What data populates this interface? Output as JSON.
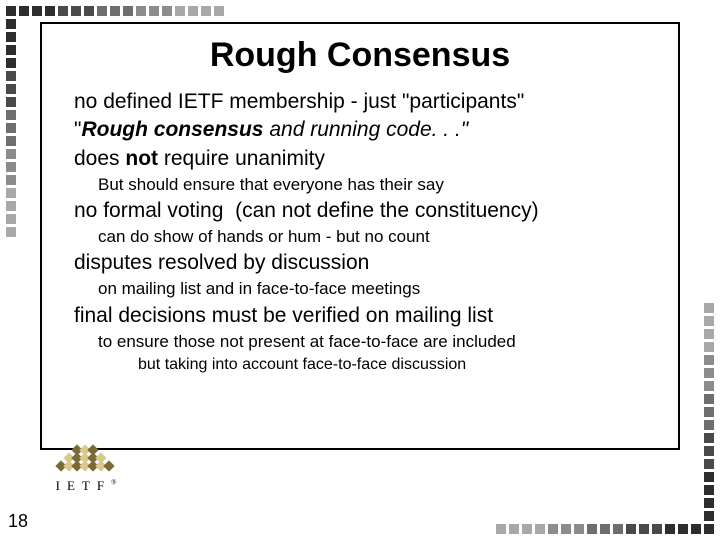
{
  "page_number": "18",
  "title": "Rough Consensus",
  "decor": {
    "colors": [
      "#2d2d2d",
      "#4a4a4a",
      "#6e6e6e",
      "#8c8c8c",
      "#a8a8a8"
    ],
    "square_size": 10,
    "gap": 3,
    "count_per_side": 17
  },
  "logo": {
    "text": "IETF",
    "diamond_colors": {
      "dark": "#7a6a3a",
      "light": "#d9c98a"
    }
  },
  "lines": [
    {
      "level": 1,
      "segments": [
        {
          "t": "no defined IETF membership - just \"participants\""
        }
      ]
    },
    {
      "level": 1,
      "segments": [
        {
          "t": "\""
        },
        {
          "t": "Rough consensus",
          "b": true,
          "i": true
        },
        {
          "t": " and running code. . .\"",
          "i": true
        }
      ]
    },
    {
      "level": 1,
      "segments": [
        {
          "t": "does "
        },
        {
          "t": "not",
          "b": true
        },
        {
          "t": " require unanimity"
        }
      ]
    },
    {
      "level": 2,
      "segments": [
        {
          "t": "But should ensure that everyone has their say"
        }
      ]
    },
    {
      "level": 1,
      "segments": [
        {
          "t": "no formal voting  (can not define the constituency)"
        }
      ]
    },
    {
      "level": 2,
      "segments": [
        {
          "t": "can do show of hands or hum - but no count"
        }
      ]
    },
    {
      "level": 1,
      "segments": [
        {
          "t": "disputes resolved by discussion"
        }
      ]
    },
    {
      "level": 2,
      "segments": [
        {
          "t": "on mailing list and in face-to-face meetings"
        }
      ]
    },
    {
      "level": 1,
      "segments": [
        {
          "t": "final decisions must be verified on mailing list"
        }
      ]
    },
    {
      "level": 2,
      "segments": [
        {
          "t": "to ensure those not present at face-to-face are included"
        }
      ]
    },
    {
      "level": 3,
      "segments": [
        {
          "t": "but taking into account face-to-face discussion"
        }
      ]
    }
  ]
}
